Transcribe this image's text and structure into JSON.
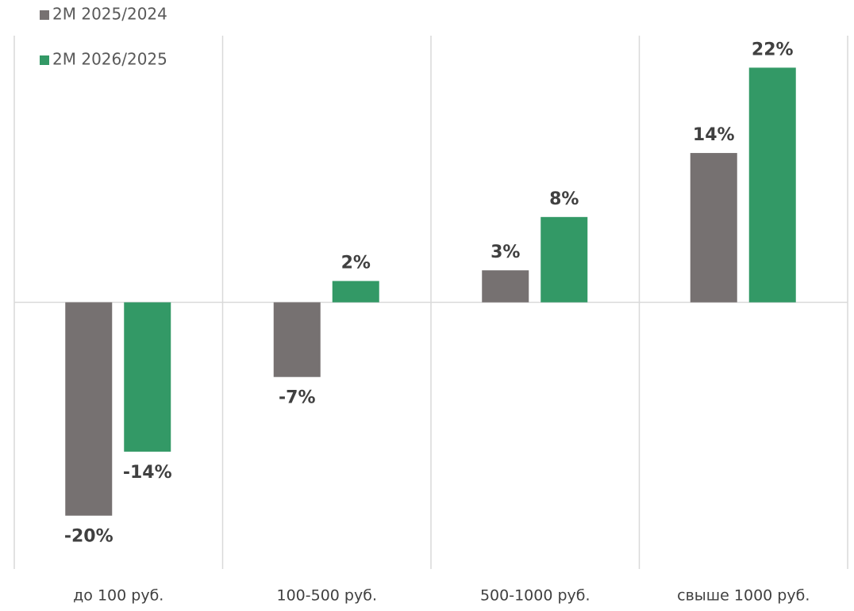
{
  "chart_data": {
    "type": "bar",
    "categories": [
      "до 100 руб.",
      "100-500 руб.",
      "500-1000 руб.",
      "свыше 1000 руб."
    ],
    "series": [
      {
        "name": "2M 2025/2024",
        "color": "#767171",
        "values": [
          -20,
          -7,
          3,
          14
        ],
        "value_labels": [
          "-20%",
          "-7%",
          "3%",
          "14%"
        ]
      },
      {
        "name": "2M 2026/2025",
        "color": "#339966",
        "values": [
          -14,
          2,
          8,
          22
        ],
        "value_labels": [
          "-14%",
          "2%",
          "8%",
          "22%"
        ]
      }
    ],
    "ylim": [
      -25,
      25
    ],
    "legend": "top-left",
    "category_separators": true
  }
}
